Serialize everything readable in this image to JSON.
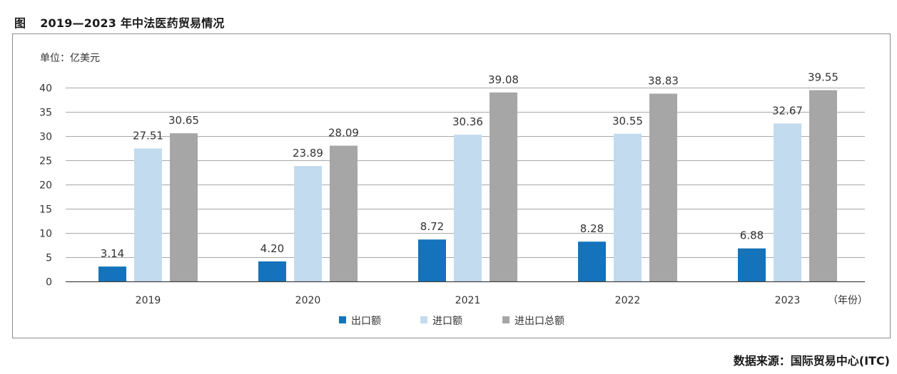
{
  "figure": {
    "label": "图",
    "title": "2019—2023 年中法医药贸易情况"
  },
  "source": "数据来源：国际贸易中心(ITC)",
  "chart_data": {
    "type": "bar",
    "unit_label": "单位：亿美元",
    "x_unit_label": "（年份）",
    "categories": [
      "2019",
      "2020",
      "2021",
      "2022",
      "2023"
    ],
    "series": [
      {
        "name": "出口额",
        "color": "#1473bb",
        "values": [
          3.14,
          4.2,
          8.72,
          8.28,
          6.88
        ],
        "labels": [
          "3.14",
          "4.20",
          "8.72",
          "8.28",
          "6.88"
        ]
      },
      {
        "name": "进口额",
        "color": "#c3dbef",
        "values": [
          27.51,
          23.89,
          30.36,
          30.55,
          32.67
        ],
        "labels": [
          "27.51",
          "23.89",
          "30.36",
          "30.55",
          "32.67"
        ]
      },
      {
        "name": "进出口总额",
        "color": "#a7a6a7",
        "values": [
          30.65,
          28.09,
          39.08,
          38.83,
          39.55
        ],
        "labels": [
          "30.65",
          "28.09",
          "39.08",
          "38.83",
          "39.55"
        ]
      }
    ],
    "ylim": [
      0,
      40
    ],
    "yticks": [
      0,
      5,
      10,
      15,
      20,
      25,
      30,
      35,
      40
    ],
    "grid": true,
    "legend_position": "bottom-center"
  }
}
